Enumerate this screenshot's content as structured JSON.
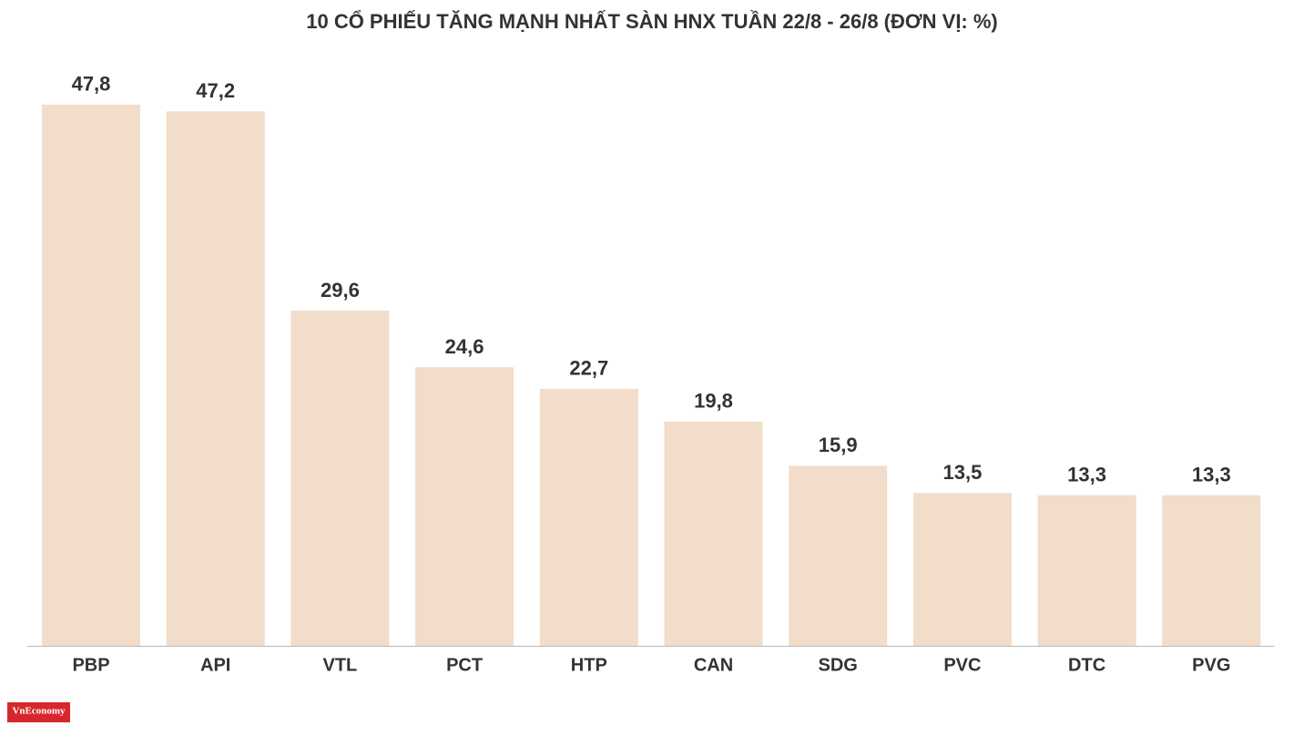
{
  "chart_data": {
    "type": "bar",
    "title": "10 CỔ PHIẾU TĂNG MẠNH NHẤT SÀN HNX TUẦN 22/8 - 26/8 (ĐƠN VỊ: %)",
    "categories": [
      "PBP",
      "API",
      "VTL",
      "PCT",
      "HTP",
      "CAN",
      "SDG",
      "PVC",
      "DTC",
      "PVG"
    ],
    "values": [
      47.8,
      47.2,
      29.6,
      24.6,
      22.7,
      19.8,
      15.9,
      13.5,
      13.3,
      13.3
    ],
    "value_labels": [
      "47,8",
      "47,2",
      "29,6",
      "24,6",
      "22,7",
      "19,8",
      "15,9",
      "13,5",
      "13,3",
      "13,3"
    ],
    "color": "#f2dcca",
    "ylim": [
      0,
      50
    ],
    "logo": "VnEconomy"
  }
}
